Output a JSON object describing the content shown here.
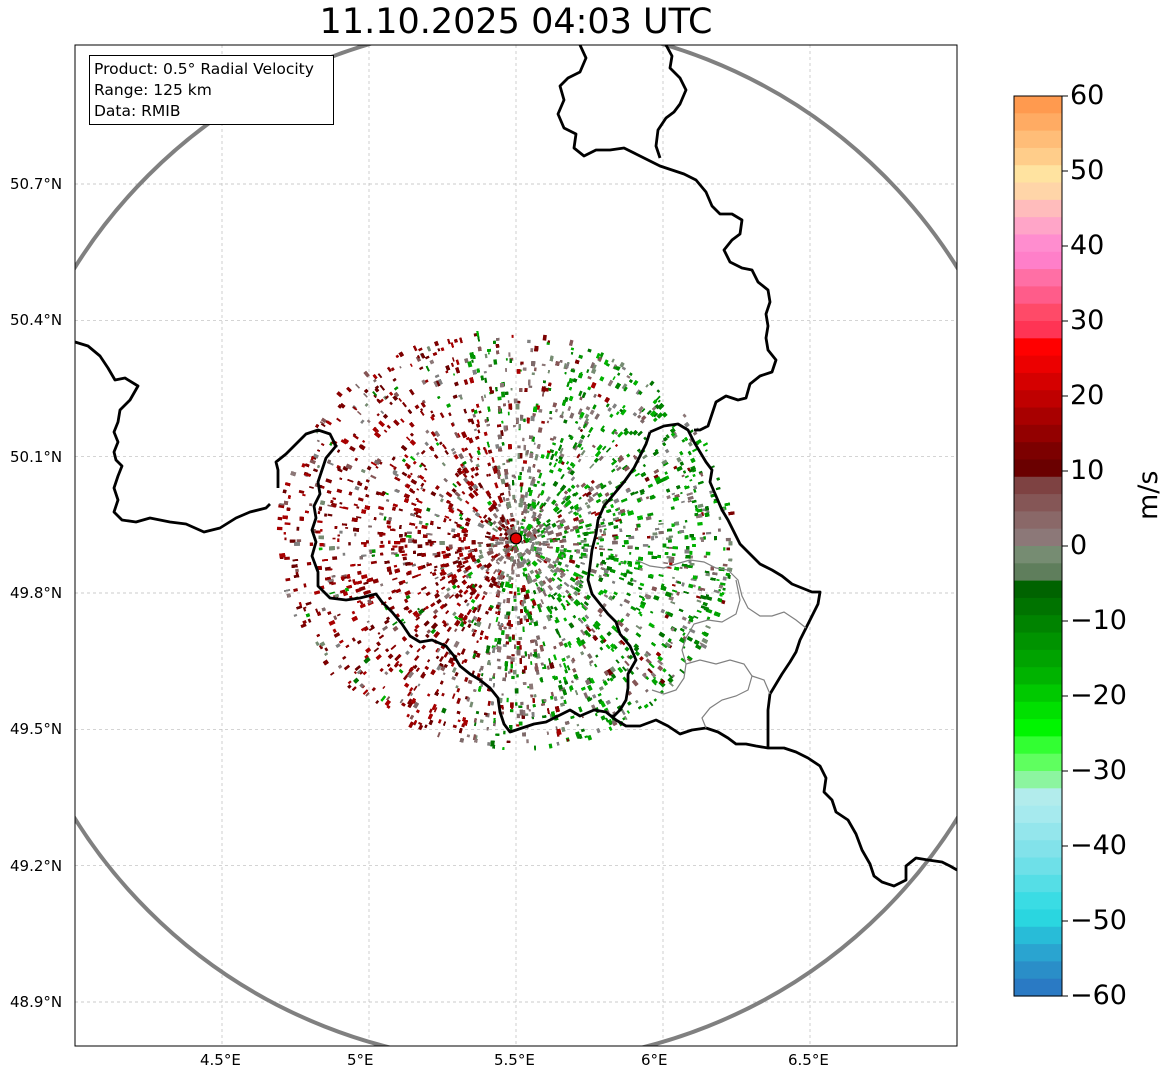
{
  "title": "11.10.2025 04:03 UTC",
  "info": {
    "product": "Product: 0.5° Radial Velocity",
    "range": "Range: 125 km",
    "data": "Data: RMIB"
  },
  "map": {
    "lat_labels": [
      "50.7°N",
      "50.4°N",
      "50.1°N",
      "49.8°N",
      "49.5°N",
      "49.2°N",
      "48.9°N"
    ],
    "lat_values": [
      50.7,
      50.4,
      50.1,
      49.8,
      49.5,
      49.2,
      48.9
    ],
    "lon_labels": [
      "4.5°E",
      "5°E",
      "5.5°E",
      "6°E",
      "6.5°E"
    ],
    "lon_values": [
      4.5,
      5.0,
      5.5,
      6.0,
      6.5
    ],
    "lon_range": [
      4.0,
      7.0
    ],
    "lat_range": [
      48.8,
      51.0
    ],
    "radar_site": {
      "lon": 5.5,
      "lat": 49.92
    },
    "range_km": 125
  },
  "colorbar": {
    "label": "m/s",
    "min": -60,
    "max": 60,
    "tick_values": [
      60,
      50,
      40,
      30,
      20,
      10,
      0,
      -10,
      -20,
      -30,
      -40,
      -50,
      -60
    ],
    "tick_labels": [
      "60",
      "50",
      "40",
      "30",
      "20",
      "10",
      "0",
      "−10",
      "−20",
      "−30",
      "−40",
      "−50",
      "−60"
    ],
    "colors": [
      "#ff9a4f",
      "#ffab63",
      "#ffbd78",
      "#ffcd8a",
      "#ffe3a0",
      "#ffd5a8",
      "#ffbcbc",
      "#ffa5c8",
      "#ff8dcf",
      "#ff7fc9",
      "#ff6fa5",
      "#ff5c8a",
      "#ff4a68",
      "#ff3454",
      "#ff0000",
      "#ec0000",
      "#d50000",
      "#bf0000",
      "#a80000",
      "#930000",
      "#7c0000",
      "#6a0000",
      "#7e4242",
      "#855656",
      "#8a6868",
      "#8c7878",
      "#768c72",
      "#5f7e5c",
      "#006300",
      "#007300",
      "#008300",
      "#009300",
      "#00a300",
      "#00b300",
      "#00c900",
      "#00e000",
      "#00f500",
      "#32ff32",
      "#5fff5f",
      "#8cf5a0",
      "#b2ecec",
      "#a6eaee",
      "#94e6ec",
      "#82e2ea",
      "#6ee0e8",
      "#55dee6",
      "#3adce4",
      "#2ad6e0",
      "#28bcd8",
      "#2aa4d0",
      "#2a8ec8",
      "#2a7ac4"
    ]
  }
}
